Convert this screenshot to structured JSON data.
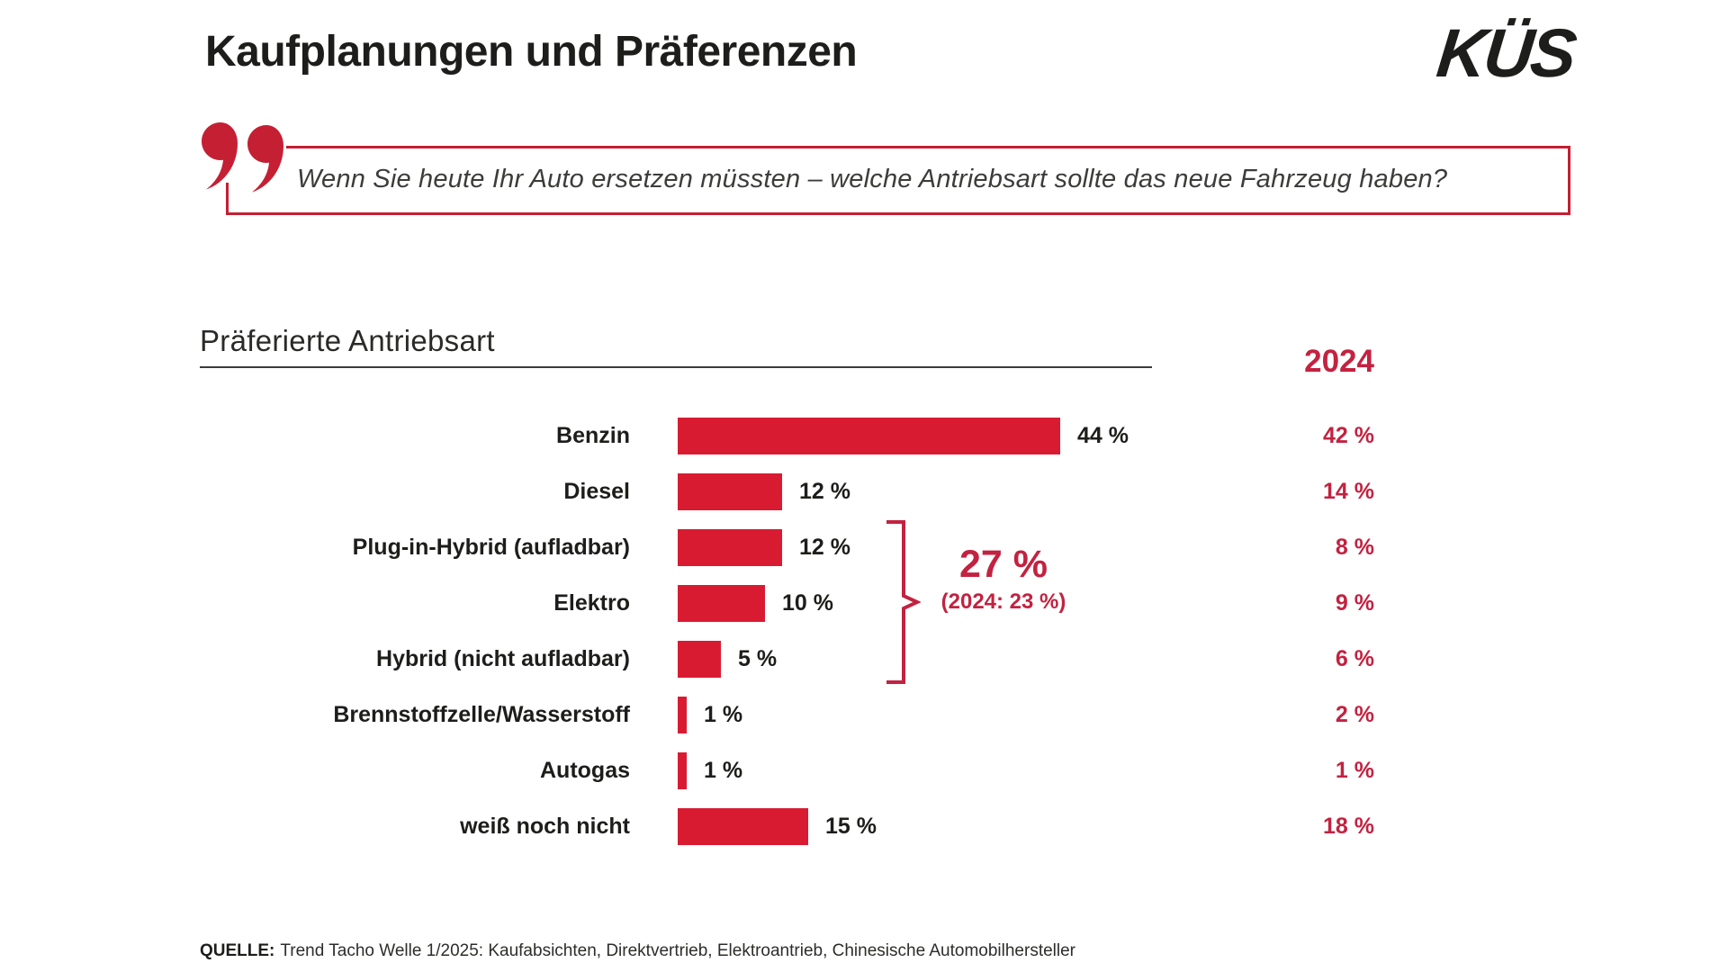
{
  "page": {
    "title": "Kaufplanungen und Präferenzen"
  },
  "logo": {
    "text": "KÜS"
  },
  "quote": {
    "text": "Wenn Sie heute Ihr Auto ersetzen müssten – welche Antriebsart sollte das neue Fahrzeug haben?"
  },
  "chart_data": {
    "type": "bar",
    "orientation": "horizontal",
    "title": "Präferierte Antriebsart",
    "year_column_header": "2024",
    "categories": [
      "Benzin",
      "Diesel",
      "Plug-in-Hybrid (aufladbar)",
      "Elektro",
      "Hybrid (nicht aufladbar)",
      "Brennstoffzelle/Wasserstoff",
      "Autogas",
      "weiß noch nicht"
    ],
    "series": [
      {
        "name": "Welle 1/2025",
        "values": [
          44,
          12,
          12,
          10,
          5,
          1,
          1,
          15
        ],
        "labels": [
          "44 %",
          "12 %",
          "12 %",
          "10 %",
          "5 %",
          "1 %",
          "1 %",
          "15 %"
        ]
      },
      {
        "name": "2024",
        "values": [
          42,
          14,
          8,
          9,
          6,
          2,
          1,
          18
        ],
        "labels": [
          "42 %",
          "14 %",
          "8 %",
          "9 %",
          "6 %",
          "2 %",
          "1 %",
          "18 %"
        ]
      }
    ],
    "xlim": [
      0,
      50
    ],
    "grid": false,
    "legend": "none",
    "annotation": {
      "grouped_categories": [
        "Plug-in-Hybrid (aufladbar)",
        "Elektro",
        "Hybrid (nicht aufladbar)"
      ],
      "sum_label": "27 %",
      "previous_year_label": "(2024: 23 %)"
    }
  },
  "source": {
    "prefix": "QUELLE:",
    "text": "Trend Tacho Welle 1/2025: Kaufabsichten, Direktvertrieb, Elektroantrieb, Chinesische Automobilhersteller"
  },
  "colors": {
    "bar_red": "#d91b32",
    "text_red": "#c32240",
    "frame_red": "#c51f33",
    "ink": "#1d1d1b"
  }
}
